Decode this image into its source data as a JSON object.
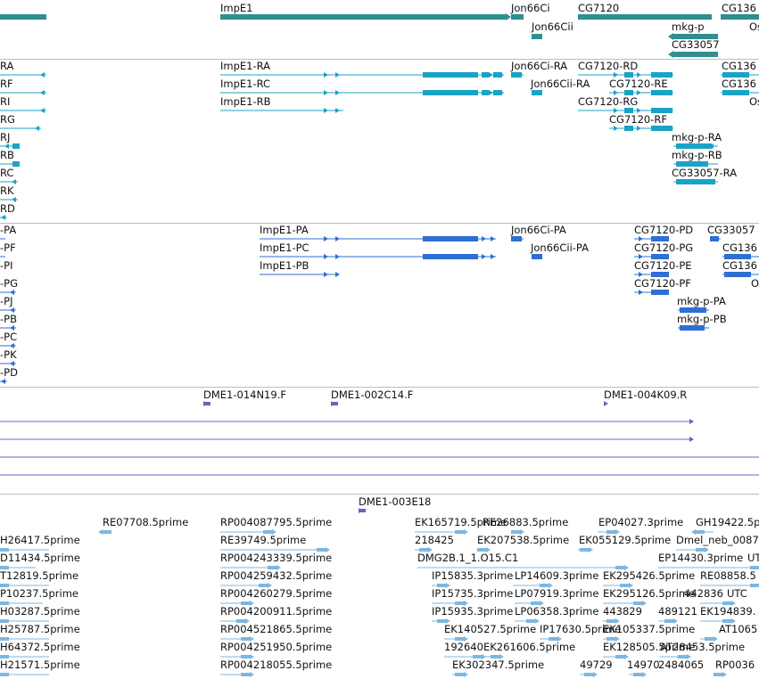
{
  "colors": {
    "gene": "#2f8f8f",
    "transcript": "#1aa3c6",
    "protein": "#2f6fd4",
    "clone": "#7b58c6",
    "est": "#7db7e0",
    "divider": "#bdbdbd"
  },
  "tracks": {
    "genes": {
      "labels": [
        "ImpE1",
        "Jon66Ci",
        "CG7120",
        "CG136",
        "Jon66Cii",
        "mkg-p",
        "Os",
        "CG33057"
      ]
    },
    "transcripts": {
      "labels": [
        "RA",
        "ImpE1-RA",
        "Jon66Ci-RA",
        "CG7120-RD",
        "CG136",
        "RF",
        "ImpE1-RC",
        "Jon66Cii-RA",
        "CG7120-RE",
        "CG136",
        "RI",
        "ImpE1-RB",
        "CG7120-RG",
        "Os",
        "RG",
        "CG7120-RF",
        "RJ",
        "mkg-p-RA",
        "RB",
        "mkg-p-RB",
        "RC",
        "CG33057-RA",
        "RK",
        "RD"
      ]
    },
    "proteins": {
      "labels": [
        "-PA",
        "ImpE1-PA",
        "Jon66Ci-PA",
        "CG7120-PD",
        "CG33057",
        "-PF",
        "ImpE1-PC",
        "Jon66Cii-PA",
        "CG7120-PG",
        "CG136",
        "-PI",
        "ImpE1-PB",
        "CG7120-PE",
        "CG136",
        "-PG",
        "CG7120-PF",
        "Os",
        "-PJ",
        "mkg-p-PA",
        "-PB",
        "mkg-p-PB",
        "-PC",
        "-PK",
        "-PD"
      ]
    },
    "clones": {
      "labels": [
        "DME1-014N19.F",
        "DME1-002C14.F",
        "DME1-004K09.R",
        "DME1-003E18"
      ]
    },
    "ests": {
      "labels": [
        "RE07708.5prime",
        "RP004087795.5prime",
        "EK165719.5prime",
        "RE26883.5prime",
        "EP04027.3prime",
        "GH19422.5p",
        "H26417.5prime",
        "RE39749.5prime",
        "218425",
        "EK207538.5prime",
        "EK055129.5prime",
        "Dmel_neb_0087",
        "D11434.5prime",
        "RP004243339.5prime",
        "DMG2B.1_1.O15.C1",
        "EP14430.3prime",
        "UT",
        "T12819.5prime",
        "RP004259432.5prime",
        "IP15835.3prime",
        "LP14609.3prime",
        "EK295426.5prime",
        "RE08858.5",
        "P10237.5prime",
        "RP004260279.5prime",
        "IP15735.3prime",
        "LP07919.3prime",
        "EK295126.5prime",
        "442836",
        "UTC",
        "H03287.5prime",
        "RP004200911.5prime",
        "IP15935.3prime",
        "LP06358.3prime",
        "443829",
        "489121",
        "EK194839.",
        "H25787.5prime",
        "RP004521865.5prime",
        "EK140527.5prime",
        "IP17630.5prime",
        "EK105337.5prime",
        "AT1065",
        "H64372.5prime",
        "RP004251950.5prime",
        "192640",
        "EK261606.5prime",
        "EK128505.5prime",
        "AT28453.5prime",
        "H21571.5prime",
        "RP004218055.5prime",
        "EK302347.5prime",
        "49729",
        "14970",
        "2484065",
        "RP0036"
      ]
    }
  }
}
